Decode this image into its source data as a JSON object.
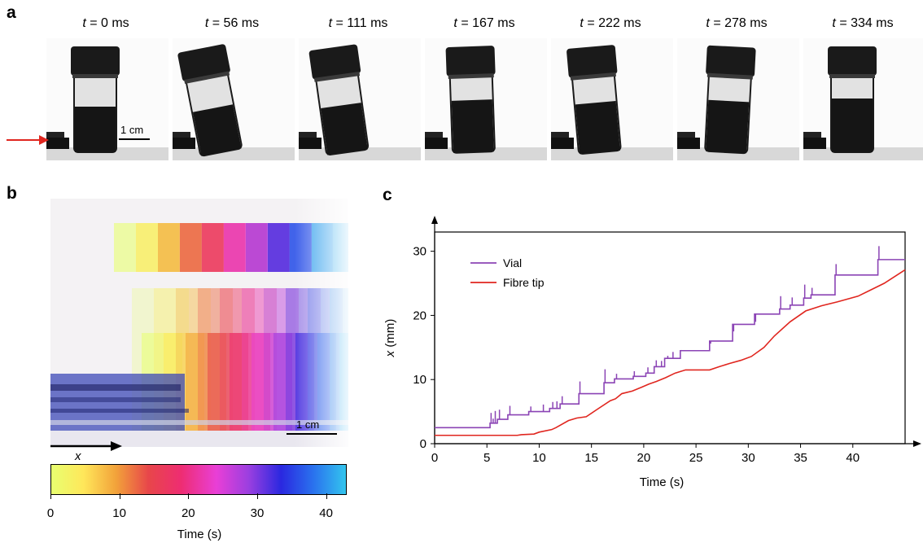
{
  "panels": {
    "a": "a",
    "b": "b",
    "c": "c"
  },
  "panel_a": {
    "time_symbol": "t",
    "frames": [
      {
        "time": " = 0 ms",
        "tilt": 0
      },
      {
        "time": " = 56 ms",
        "tilt": -11
      },
      {
        "time": " = 111 ms",
        "tilt": -8
      },
      {
        "time": " = 167 ms",
        "tilt": -2
      },
      {
        "time": " = 222 ms",
        "tilt": -5
      },
      {
        "time": " = 278 ms",
        "tilt": 3
      },
      {
        "time": " = 334 ms",
        "tilt": 0
      }
    ],
    "scale_bar": "1 cm",
    "arrow_color": "#e0261f"
  },
  "panel_b": {
    "scale_bar": "1 cm",
    "axis_symbol": "x",
    "colorbar": {
      "ticks": [
        "0",
        "10",
        "20",
        "30",
        "40"
      ],
      "tick_values": [
        0,
        10,
        20,
        30,
        40
      ],
      "max": 43,
      "title": "Time (s)",
      "colors": [
        "#e8ff70",
        "#ffe75a",
        "#f2a23a",
        "#e8464a",
        "#ee2d72",
        "#e93fd6",
        "#9b3fe0",
        "#2a28e0",
        "#2a72ee",
        "#33c5ee"
      ]
    }
  },
  "chart_data": {
    "type": "line",
    "xlabel": "Time (s)",
    "ylabel_symbol": "x",
    "ylabel_unit": " (mm)",
    "xlim": [
      0,
      45
    ],
    "ylim": [
      0,
      33
    ],
    "xticks": [
      0,
      5,
      10,
      15,
      20,
      25,
      30,
      35,
      40
    ],
    "yticks": [
      0,
      10,
      20,
      30
    ],
    "grid": false,
    "legend_position": "top-left",
    "series": [
      {
        "name": "Vial",
        "color": "#8b44b5",
        "x": [
          0,
          5.3,
          5.3,
          6,
          6,
          7,
          7,
          9,
          9,
          11,
          11,
          12,
          12,
          13.8,
          13.8,
          16.2,
          16.2,
          17.2,
          17.2,
          19,
          19,
          20.2,
          20.2,
          21,
          21,
          22,
          22,
          23.5,
          23.5,
          26.3,
          26.3,
          28.5,
          28.5,
          30.6,
          30.6,
          33,
          33,
          34,
          34,
          35.3,
          35.3,
          36,
          36,
          38.3,
          38.3,
          42.4,
          42.4,
          45
        ],
        "y": [
          2.5,
          2.5,
          3.2,
          3.2,
          3.8,
          3.8,
          4.5,
          4.5,
          5,
          5,
          5.5,
          5.5,
          6.2,
          6.2,
          7.8,
          7.8,
          9.5,
          9.5,
          10.1,
          10.1,
          10.5,
          10.5,
          11,
          11,
          12,
          12,
          13.3,
          13.3,
          14.5,
          14.5,
          16,
          16,
          18.6,
          18.6,
          20.2,
          20.2,
          21,
          21,
          21.6,
          21.6,
          22.7,
          22.7,
          23.2,
          23.2,
          26.3,
          26.3,
          28.7,
          28.7
        ],
        "spikes": [
          [
            5.4,
            4.8
          ],
          [
            5.6,
            3.9
          ],
          [
            5.8,
            5.1
          ],
          [
            6.2,
            5.3
          ],
          [
            7.2,
            5.9
          ],
          [
            9.2,
            5.8
          ],
          [
            10.4,
            6.1
          ],
          [
            11.3,
            6.5
          ],
          [
            11.7,
            6.6
          ],
          [
            12.2,
            7.4
          ],
          [
            13.9,
            9.7
          ],
          [
            16.3,
            11.6
          ],
          [
            17.4,
            10.9
          ],
          [
            19.1,
            11.3
          ],
          [
            20.4,
            11.9
          ],
          [
            21.2,
            13.0
          ],
          [
            21.7,
            12.9
          ],
          [
            22.3,
            13.7
          ],
          [
            22.8,
            14.3
          ],
          [
            23.6,
            14.6
          ],
          [
            26.4,
            15.6
          ],
          [
            28.6,
            17.5
          ],
          [
            30.7,
            19.0
          ],
          [
            33.1,
            23.0
          ],
          [
            34.2,
            22.8
          ],
          [
            35.4,
            24.8
          ],
          [
            36.1,
            24.3
          ],
          [
            38.4,
            28.0
          ],
          [
            42.5,
            30.8
          ]
        ]
      },
      {
        "name": "Fibre tip",
        "color": "#e0261f",
        "x": [
          0,
          7.9,
          8.3,
          9.5,
          10,
          11.2,
          11.6,
          12.8,
          13.6,
          14.5,
          15.5,
          16.8,
          17.3,
          17.9,
          18.9,
          19.8,
          20.5,
          21.2,
          22.1,
          23,
          24,
          26.3,
          27.2,
          28.2,
          29.3,
          30.3,
          31.5,
          32.5,
          34,
          35.5,
          37,
          38.5,
          40.5,
          41.5,
          43,
          45
        ],
        "y": [
          1.3,
          1.3,
          1.4,
          1.5,
          1.8,
          2.2,
          2.5,
          3.6,
          4,
          4.2,
          5.3,
          6.7,
          7,
          7.8,
          8.2,
          8.8,
          9.3,
          9.7,
          10.3,
          11,
          11.5,
          11.5,
          12,
          12.5,
          13,
          13.6,
          15,
          16.8,
          19,
          20.7,
          21.5,
          22.1,
          23,
          23.8,
          25,
          27.1
        ]
      }
    ]
  }
}
